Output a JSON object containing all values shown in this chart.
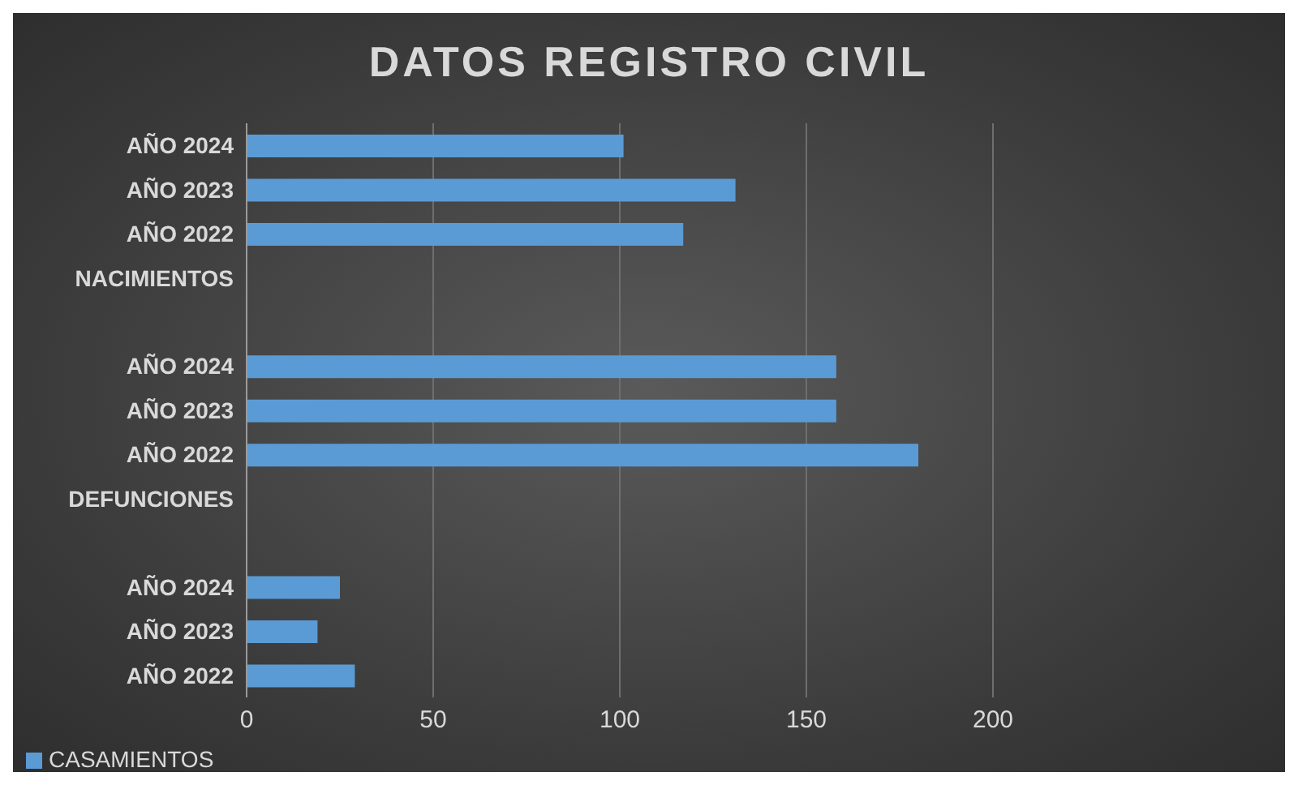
{
  "chart_data": {
    "type": "bar",
    "orientation": "horizontal",
    "title": "DATOS REGISTRO CIVIL",
    "categories": [
      "AÑO 2024",
      "AÑO 2023",
      "AÑO 2022",
      "NACIMIENTOS",
      null,
      "AÑO 2024",
      "AÑO 2023",
      "AÑO 2022",
      "DEFUNCIONES",
      null,
      "AÑO 2024",
      "AÑO 2023",
      "AÑO 2022"
    ],
    "series": [
      {
        "name": "CASAMIENTOS",
        "color": "#5b9bd5",
        "values": [
          101,
          131,
          117,
          null,
          null,
          158,
          158,
          180,
          null,
          null,
          25,
          19,
          29
        ]
      }
    ],
    "xlim": [
      0,
      200
    ],
    "xticks": [
      0,
      50,
      100,
      150,
      200
    ],
    "grid": "x",
    "legend": "bottom left"
  }
}
